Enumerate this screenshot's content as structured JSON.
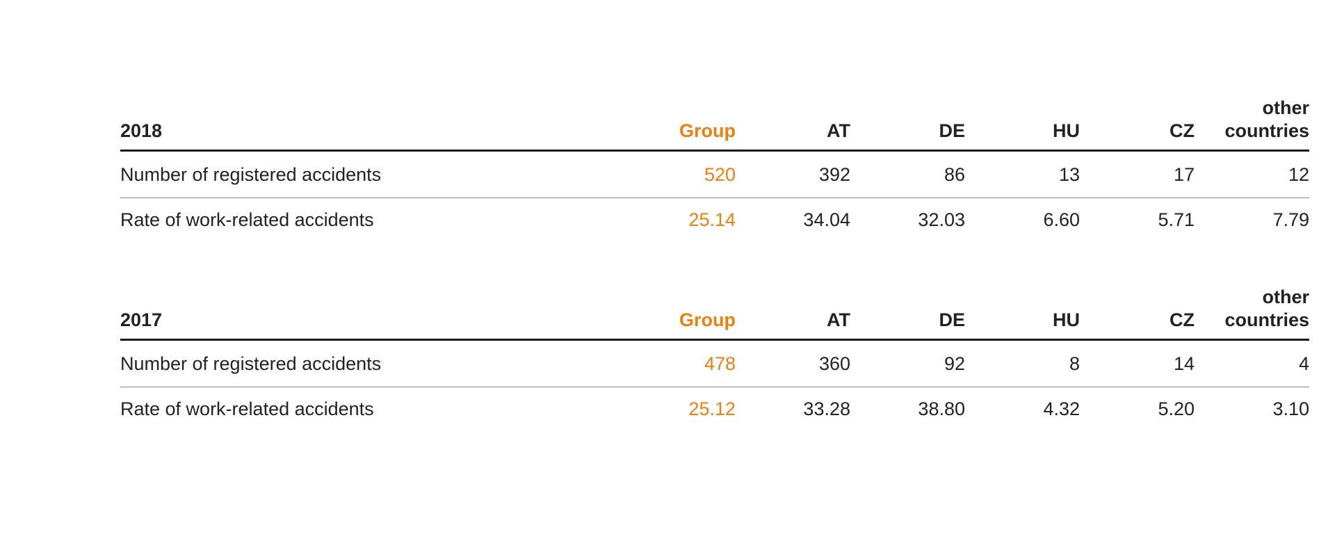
{
  "colors": {
    "accent": "#ec7f0e",
    "text": "#222222",
    "rule": "#1a1a1a"
  },
  "chart_data": [
    {
      "type": "table",
      "year": "2018",
      "columns": [
        "Group",
        "AT",
        "DE",
        "HU",
        "CZ",
        "other countries"
      ],
      "rows": [
        {
          "label": "Number of registered accidents",
          "values": [
            "520",
            "392",
            "86",
            "13",
            "17",
            "12"
          ]
        },
        {
          "label": "Rate of work-related accidents",
          "values": [
            "25.14",
            "34.04",
            "32.03",
            "6.60",
            "5.71",
            "7.79"
          ]
        }
      ]
    },
    {
      "type": "table",
      "year": "2017",
      "columns": [
        "Group",
        "AT",
        "DE",
        "HU",
        "CZ",
        "other countries"
      ],
      "rows": [
        {
          "label": "Number of registered accidents",
          "values": [
            "478",
            "360",
            "92",
            "8",
            "14",
            "4"
          ]
        },
        {
          "label": "Rate of work-related accidents",
          "values": [
            "25.12",
            "33.28",
            "38.80",
            "4.32",
            "5.20",
            "3.10"
          ]
        }
      ]
    }
  ]
}
